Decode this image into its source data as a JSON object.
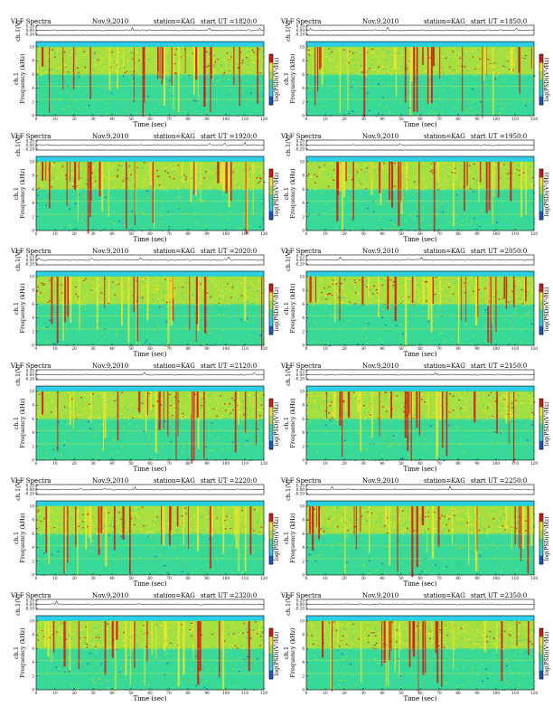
{
  "common": {
    "title": "VLF Spectra",
    "date": "Nov.9,2010",
    "station": "station=KAG",
    "start_prefix": "start  UT =",
    "top_ylabel": "ch.1(V)",
    "main_ylabel_1": "ch.1",
    "main_ylabel_2": "Frequency (kHz)",
    "xlabel": "Time (sec)",
    "colorbar_label": "log(PSD)(V²/Hz)",
    "top_ticks": [
      "0.20",
      "0.00",
      "-0.20"
    ],
    "freq_ticks": [
      "0",
      "2",
      "4",
      "6",
      "8",
      "10"
    ],
    "time_ticks": [
      "0",
      "10",
      "20",
      "30",
      "40",
      "50",
      "60",
      "70",
      "80",
      "90",
      "100",
      "110",
      "120"
    ],
    "colors": {
      "background": "#2ecfe6",
      "low": "#38d996",
      "mid": "#a6e040",
      "high": "#f5e62a",
      "peak": "#d41a12",
      "deep": "#1858c8"
    }
  },
  "chart_data": [
    {
      "type": "heatmap",
      "start_ut": "1820:0",
      "xlabel": "Time (sec)",
      "ylabel": "Frequency (kHz)",
      "xlim": [
        0,
        120
      ],
      "ylim": [
        0,
        10
      ]
    },
    {
      "type": "heatmap",
      "start_ut": "1850:0",
      "xlabel": "Time (sec)",
      "ylabel": "Frequency (kHz)",
      "xlim": [
        0,
        120
      ],
      "ylim": [
        0,
        10
      ]
    },
    {
      "type": "heatmap",
      "start_ut": "1920:0",
      "xlabel": "Time (sec)",
      "ylabel": "Frequency (kHz)",
      "xlim": [
        0,
        120
      ],
      "ylim": [
        0,
        10
      ]
    },
    {
      "type": "heatmap",
      "start_ut": "1950:0",
      "xlabel": "Time (sec)",
      "ylabel": "Frequency (kHz)",
      "xlim": [
        0,
        120
      ],
      "ylim": [
        0,
        10
      ]
    },
    {
      "type": "heatmap",
      "start_ut": "2020:0",
      "xlabel": "Time (sec)",
      "ylabel": "Frequency (kHz)",
      "xlim": [
        0,
        120
      ],
      "ylim": [
        0,
        10
      ]
    },
    {
      "type": "heatmap",
      "start_ut": "2050:0",
      "xlabel": "Time (sec)",
      "ylabel": "Frequency (kHz)",
      "xlim": [
        0,
        120
      ],
      "ylim": [
        0,
        10
      ]
    },
    {
      "type": "heatmap",
      "start_ut": "2120:0",
      "xlabel": "Time (sec)",
      "ylabel": "Frequency (kHz)",
      "xlim": [
        0,
        120
      ],
      "ylim": [
        0,
        10
      ]
    },
    {
      "type": "heatmap",
      "start_ut": "2150:0",
      "xlabel": "Time (sec)",
      "ylabel": "Frequency (kHz)",
      "xlim": [
        0,
        120
      ],
      "ylim": [
        0,
        10
      ]
    },
    {
      "type": "heatmap",
      "start_ut": "2220:0",
      "xlabel": "Time (sec)",
      "ylabel": "Frequency (kHz)",
      "xlim": [
        0,
        120
      ],
      "ylim": [
        0,
        10
      ]
    },
    {
      "type": "heatmap",
      "start_ut": "2250:0",
      "xlabel": "Time (sec)",
      "ylabel": "Frequency (kHz)",
      "xlim": [
        0,
        120
      ],
      "ylim": [
        0,
        10
      ]
    },
    {
      "type": "heatmap",
      "start_ut": "2320:0",
      "xlabel": "Time (sec)",
      "ylabel": "Frequency (kHz)",
      "xlim": [
        0,
        120
      ],
      "ylim": [
        0,
        10
      ]
    },
    {
      "type": "heatmap",
      "start_ut": "2350:0",
      "xlabel": "Time (sec)",
      "ylabel": "Frequency (kHz)",
      "xlim": [
        0,
        120
      ],
      "ylim": [
        0,
        10
      ]
    }
  ]
}
